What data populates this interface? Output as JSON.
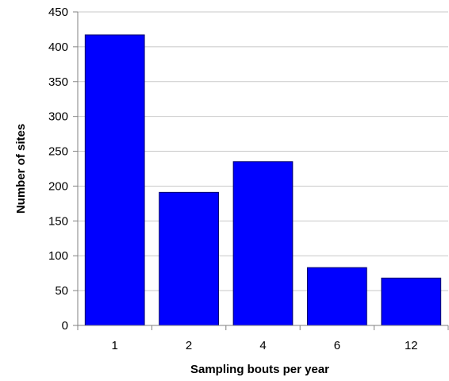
{
  "chart_data": {
    "type": "bar",
    "categories": [
      "1",
      "2",
      "4",
      "6",
      "12"
    ],
    "values": [
      417,
      191,
      235,
      83,
      68
    ],
    "title": "",
    "xlabel": "Sampling bouts per year",
    "ylabel": "Number of sites",
    "ylim": [
      0,
      450
    ],
    "yticks": [
      "0",
      "50",
      "100",
      "150",
      "200",
      "250",
      "300",
      "350",
      "400",
      "450"
    ],
    "grid": true,
    "legend": "none",
    "colors": {
      "bar": "#0000ff",
      "bar_stroke": "#00006a",
      "grid": "#c8c8c8",
      "axis": "#808080",
      "plot_bg": "#ffffff"
    }
  }
}
